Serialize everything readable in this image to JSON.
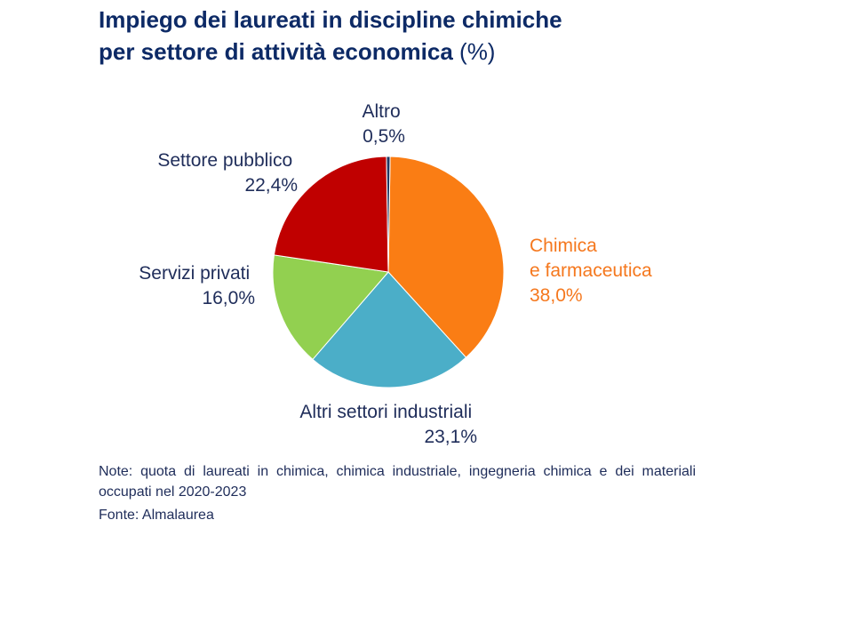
{
  "title": {
    "line1": "Impiego dei laureati in discipline chimiche",
    "line2": "per settore di attività economica",
    "unit": "(%)"
  },
  "chart_data": {
    "type": "pie",
    "slices": [
      {
        "label_lines": [
          "Chimica",
          "e farmaceutica"
        ],
        "value_label": "38,0%",
        "value": 38.0,
        "color": "#fa7d14"
      },
      {
        "label_lines": [
          "Altri settori industriali"
        ],
        "value_label": "23,1%",
        "value": 23.1,
        "color": "#4baec8"
      },
      {
        "label_lines": [
          "Servizi privati"
        ],
        "value_label": "16,0%",
        "value": 16.0,
        "color": "#92d050"
      },
      {
        "label_lines": [
          "Settore pubblico"
        ],
        "value_label": "22,4%",
        "value": 22.4,
        "color": "#c00000"
      },
      {
        "label_lines": [
          "Altro"
        ],
        "value_label": "0,5%",
        "value": 0.5,
        "color": "#1f3864"
      }
    ]
  },
  "notes": "Note: quota di laureati in chimica, chimica industriale, ingegneria chimica e dei materiali occupati nel 2020-2023",
  "source": "Fonte: Almalaurea"
}
